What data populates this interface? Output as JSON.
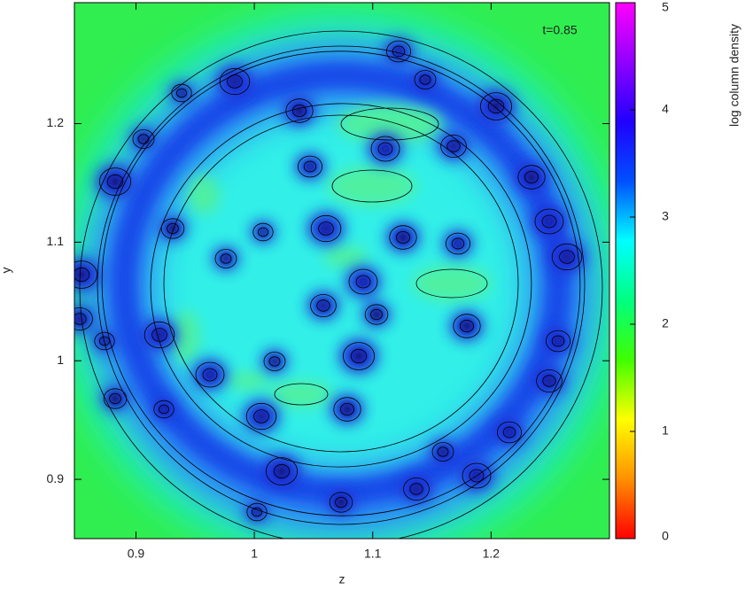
{
  "chart_data": {
    "type": "heatmap",
    "annotation": "t=0.85",
    "xlabel": "z",
    "ylabel": "y",
    "xlim": [
      0.848,
      1.3
    ],
    "ylim": [
      0.85,
      1.302
    ],
    "xticks": [
      0.9,
      1,
      1.1,
      1.2
    ],
    "yticks": [
      0.9,
      1,
      1.1,
      1.2
    ],
    "colorbar": {
      "label": "log column density",
      "lim": [
        0,
        5
      ],
      "ticks": [
        0,
        1,
        2,
        3,
        4,
        5
      ],
      "colormap": [
        "#ff0000",
        "#ff9000",
        "#ffff00",
        "#40ff00",
        "#00ff80",
        "#00ffff",
        "#0050ff",
        "#2000ff",
        "#9000ff",
        "#ff00ff"
      ]
    }
  }
}
